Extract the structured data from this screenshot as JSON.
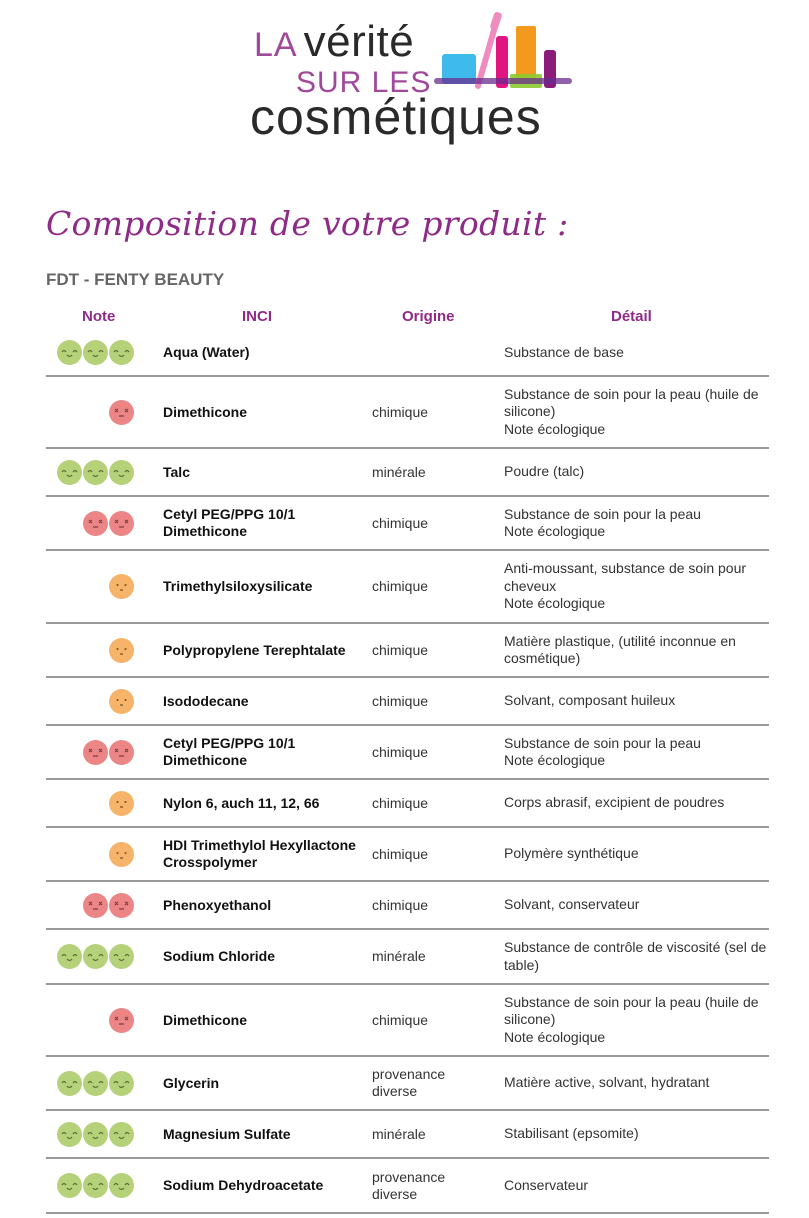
{
  "logo": {
    "line1_a": "LA",
    "line1_b": "vérité",
    "line2": "SUR LES",
    "line3": "cosmétiques"
  },
  "page": {
    "title": "Composition de votre produit :",
    "product": "FDT - FENTY BEAUTY"
  },
  "table": {
    "headers": {
      "note": "Note",
      "inci": "INCI",
      "origine": "Origine",
      "detail": "Détail"
    },
    "colors": {
      "good": "#b5d17a",
      "bad": "#ec8585",
      "mid": "#f6b46a",
      "accent": "#8e2b86"
    },
    "rows": [
      {
        "rating": "good",
        "count": 3,
        "inci": "Aqua (Water)",
        "origine": "",
        "detail": "Substance de base"
      },
      {
        "rating": "bad",
        "count": 1,
        "inci": "Dimethicone",
        "origine": "chimique",
        "detail": "Substance de soin pour la peau (huile de silicone)\nNote écologique"
      },
      {
        "rating": "good",
        "count": 3,
        "inci": "Talc",
        "origine": "minérale",
        "detail": "Poudre (talc)"
      },
      {
        "rating": "bad",
        "count": 2,
        "inci": "Cetyl PEG/PPG 10/1 Dimethicone",
        "origine": "chimique",
        "detail": "Substance de soin pour la peau\nNote écologique"
      },
      {
        "rating": "mid",
        "count": 1,
        "inci": "Trimethylsiloxysilicate",
        "origine": "chimique",
        "detail": "Anti-moussant, substance de soin pour cheveux\nNote écologique"
      },
      {
        "rating": "mid",
        "count": 1,
        "inci": "Polypropylene Terephtalate",
        "origine": "chimique",
        "detail": "Matière plastique, (utilité inconnue en cosmétique)"
      },
      {
        "rating": "mid",
        "count": 1,
        "inci": "Isododecane",
        "origine": "chimique",
        "detail": "Solvant, composant huileux"
      },
      {
        "rating": "bad",
        "count": 2,
        "inci": "Cetyl PEG/PPG 10/1 Dimethicone",
        "origine": "chimique",
        "detail": "Substance de soin pour la peau\nNote écologique"
      },
      {
        "rating": "mid",
        "count": 1,
        "inci": "Nylon 6, auch 11, 12, 66",
        "origine": "chimique",
        "detail": "Corps abrasif, excipient de poudres"
      },
      {
        "rating": "mid",
        "count": 1,
        "inci": "HDI Trimethylol Hexyllactone Crosspolymer",
        "origine": "chimique",
        "detail": "Polymère synthétique"
      },
      {
        "rating": "bad",
        "count": 2,
        "inci": "Phenoxyethanol",
        "origine": "chimique",
        "detail": "Solvant, conservateur"
      },
      {
        "rating": "good",
        "count": 3,
        "inci": "Sodium Chloride",
        "origine": "minérale",
        "detail": "Substance de contrôle de viscosité (sel de table)"
      },
      {
        "rating": "bad",
        "count": 1,
        "inci": "Dimethicone",
        "origine": "chimique",
        "detail": "Substance de soin pour la peau (huile de silicone)\nNote écologique"
      },
      {
        "rating": "good",
        "count": 3,
        "inci": "Glycerin",
        "origine": "provenance diverse",
        "detail": "Matière active, solvant, hydratant"
      },
      {
        "rating": "good",
        "count": 3,
        "inci": "Magnesium Sulfate",
        "origine": "minérale",
        "detail": "Stabilisant (epsomite)"
      },
      {
        "rating": "good",
        "count": 3,
        "inci": "Sodium Dehydroacetate",
        "origine": "provenance diverse",
        "detail": "Conservateur"
      }
    ]
  }
}
